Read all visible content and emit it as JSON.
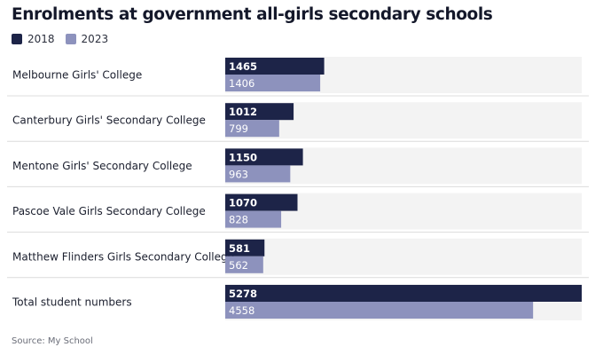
{
  "chart_data": {
    "type": "bar",
    "orientation": "horizontal",
    "title": "Enrolments at government all-girls secondary schools",
    "categories": [
      "Melbourne Girls' College",
      "Canterbury Girls' Secondary College",
      "Mentone Girls' Secondary College",
      "Pascoe Vale Girls Secondary College",
      "Matthew Flinders Girls Secondary College",
      "Total student numbers"
    ],
    "series": [
      {
        "name": "2018",
        "color": "#1d2448",
        "values": [
          1465,
          1012,
          1150,
          1070,
          581,
          5278
        ]
      },
      {
        "name": "2023",
        "color": "#8d92bd",
        "values": [
          1406,
          799,
          963,
          828,
          562,
          4558
        ]
      }
    ],
    "xlim": [
      0,
      5278
    ],
    "grid": false,
    "legend_position": "top-left",
    "background_band_color": "#f3f3f3",
    "source": "Source: My School"
  }
}
